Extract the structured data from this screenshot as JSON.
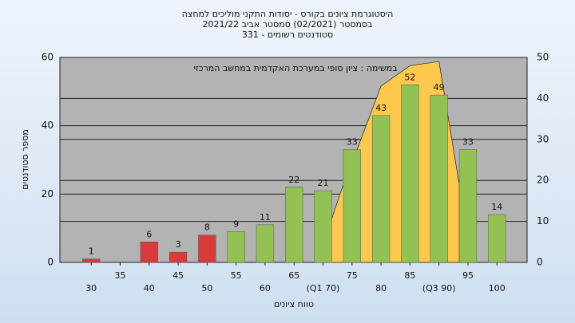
{
  "chart_data": {
    "type": "bar",
    "title": [
      "היסטוגרמת ציונים בקורס - יסודות התקני מוליכים למחצה",
      "בסמסטר  (02/2021)  סמסטר אביב 2021/22",
      "סטודנטים רשומים - 331"
    ],
    "annotation": "במשימה : ציון סופי במערכת האקדמית במחשב המרכזי",
    "xlabel": "טווח ציונים",
    "ylabel": "מספר סטודנטים",
    "x": [
      30,
      35,
      40,
      45,
      50,
      55,
      60,
      65,
      70,
      75,
      80,
      85,
      90,
      95,
      100
    ],
    "values": [
      1,
      null,
      6,
      3,
      8,
      9,
      11,
      22,
      21,
      33,
      43,
      52,
      49,
      33,
      14
    ],
    "colors": [
      "#d93b3b",
      "#d93b3b",
      "#d93b3b",
      "#d93b3b",
      "#d93b3b",
      "#93c153",
      "#93c153",
      "#93c153",
      "#93c153",
      "#93c153",
      "#93c153",
      "#93c153",
      "#93c153",
      "#93c153",
      "#93c153"
    ],
    "xlim": [
      24.6,
      105.2
    ],
    "xticks": [
      30,
      35,
      40,
      45,
      50,
      55,
      60,
      65,
      {
        "value": 70,
        "label": "(Q1 70)"
      },
      75,
      80,
      85,
      {
        "value": 90,
        "label": "(Q3 90)"
      },
      95,
      100
    ],
    "ylim": [
      0,
      60
    ],
    "yticks": [
      0,
      20,
      40,
      60
    ],
    "y2lim": [
      0,
      50
    ],
    "y2ticks": [
      0,
      10,
      20,
      30,
      40,
      50
    ],
    "area": {
      "axis": "y2",
      "color": "#fdc84e",
      "x": [
        69,
        73,
        76,
        80,
        85,
        90,
        93.5
      ],
      "values": [
        0,
        17,
        28,
        43,
        48,
        49,
        19
      ]
    },
    "grid": true
  }
}
